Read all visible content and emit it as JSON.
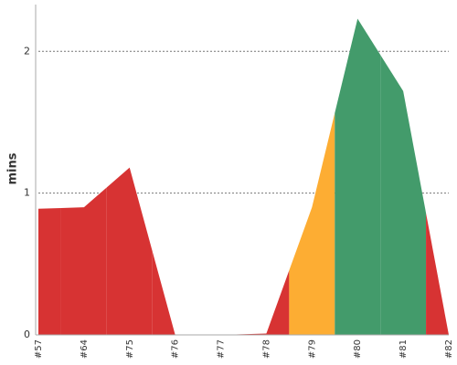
{
  "chart_data": {
    "type": "area",
    "y_label": "mins",
    "categories": [
      "#57",
      "#64",
      "#75",
      "#76",
      "#77",
      "#78",
      "#79",
      "#80",
      "#81",
      "#82"
    ],
    "values": [
      0.89,
      0.9,
      1.18,
      0,
      0,
      0.01,
      0.9,
      2.23,
      1.72,
      0
    ],
    "point_colors": [
      "#d73333",
      "#d73333",
      "#d73333",
      "#d73333",
      "#d73333",
      "#d73333",
      "#fdad33",
      "#439b6b",
      "#439b6b",
      "#d73333"
    ],
    "ylim": [
      0,
      2.33
    ],
    "yticks": [
      0,
      1,
      2
    ],
    "grid": true
  }
}
